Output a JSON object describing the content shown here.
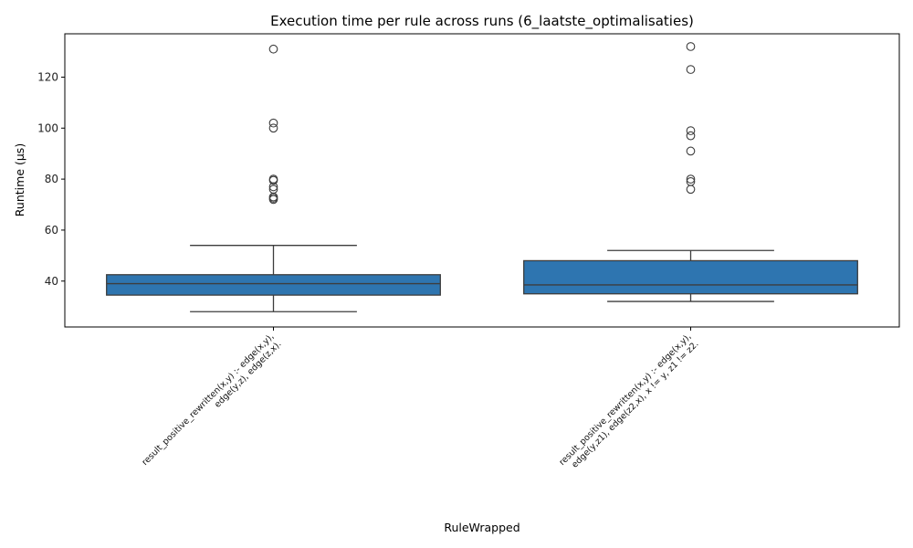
{
  "chart_data": {
    "type": "box",
    "title": "Execution time per rule across runs (6_laatste_optimalisaties)",
    "xlabel": "RuleWrapped",
    "ylabel": "Runtime (µs)",
    "ylim": [
      22,
      137
    ],
    "yticks": [
      40,
      60,
      80,
      100,
      120
    ],
    "grid": false,
    "box_color": "#2e75b0",
    "categories": [
      {
        "label_lines": [
          "result_positive_rewritten(x,y) :-     edge(x,y),",
          "edge(y,z),    edge(z,x)."
        ],
        "whisker_low": 28,
        "q1": 34.5,
        "median": 39,
        "q3": 42.5,
        "whisker_high": 54,
        "outliers": [
          131,
          102,
          100,
          80,
          79.5,
          77,
          76,
          73,
          72.5,
          72
        ]
      },
      {
        "label_lines": [
          "result_positive_rewritten(x,y) :-     edge(x,y),",
          "edge(y,z1),    edge(z2,x),    x != y,    z1 != z2."
        ],
        "whisker_low": 32,
        "q1": 35,
        "median": 38.5,
        "q3": 48,
        "whisker_high": 52,
        "outliers": [
          132,
          123,
          99,
          97,
          91,
          80,
          79,
          76
        ]
      }
    ]
  }
}
